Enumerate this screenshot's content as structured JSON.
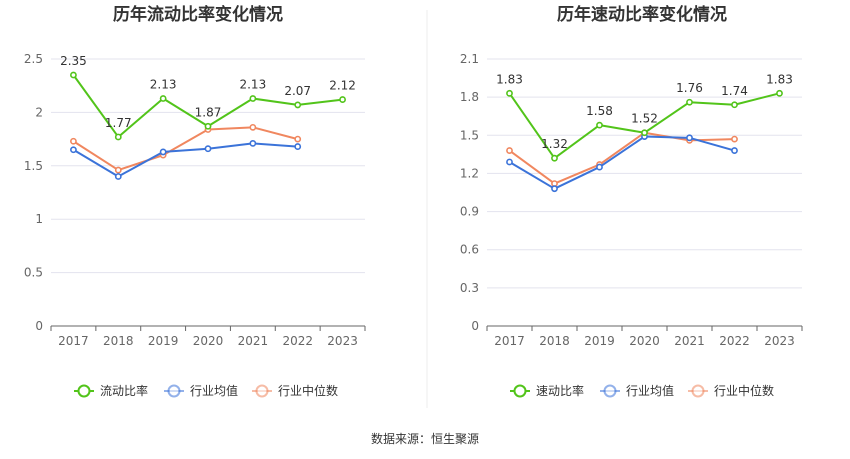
{
  "source": "数据来源：恒生聚源",
  "colors": {
    "primary": "#52c41a",
    "industry_avg": "#3b73d9",
    "industry_median": "#f0875f",
    "grid": "#e3e3ee",
    "axis": "#666666",
    "divider": "#eeeeee"
  },
  "chart_data": [
    {
      "type": "line",
      "title": "历年流动比率变化情况",
      "categories": [
        "2017",
        "2018",
        "2019",
        "2020",
        "2021",
        "2022",
        "2023"
      ],
      "ylim": [
        0,
        2.5
      ],
      "yticks": [
        0,
        0.5,
        1,
        1.5,
        2,
        2.5
      ],
      "ytick_labels": [
        "0",
        "0.5",
        "1",
        "1.5",
        "2",
        "2.5"
      ],
      "grid": true,
      "legend_position": "bottom",
      "labeled_series": 0,
      "series": [
        {
          "name": "流动比率",
          "color": "#52c41a",
          "values": [
            2.35,
            1.77,
            2.13,
            1.87,
            2.13,
            2.07,
            2.12
          ],
          "labels": [
            "2.35",
            "1.77",
            "2.13",
            "1.87",
            "2.13",
            "2.07",
            "2.12"
          ]
        },
        {
          "name": "行业均值",
          "color": "#3b73d9",
          "values": [
            1.65,
            1.4,
            1.63,
            1.66,
            1.71,
            1.68,
            null
          ]
        },
        {
          "name": "行业中位数",
          "color": "#f0875f",
          "values": [
            1.73,
            1.46,
            1.6,
            1.84,
            1.86,
            1.75,
            null
          ]
        }
      ]
    },
    {
      "type": "line",
      "title": "历年速动比率变化情况",
      "categories": [
        "2017",
        "2018",
        "2019",
        "2020",
        "2021",
        "2022",
        "2023"
      ],
      "ylim": [
        0,
        2.1
      ],
      "yticks": [
        0,
        0.3,
        0.6,
        0.9,
        1.2,
        1.5,
        1.8,
        2.1
      ],
      "ytick_labels": [
        "0",
        "0.3",
        "0.6",
        "0.9",
        "1.2",
        "1.5",
        "1.8",
        "2.1"
      ],
      "grid": true,
      "legend_position": "bottom",
      "labeled_series": 0,
      "series": [
        {
          "name": "速动比率",
          "color": "#52c41a",
          "values": [
            1.83,
            1.32,
            1.58,
            1.52,
            1.76,
            1.74,
            1.83
          ],
          "labels": [
            "1.83",
            "1.32",
            "1.58",
            "1.52",
            "1.76",
            "1.74",
            "1.83"
          ]
        },
        {
          "name": "行业均值",
          "color": "#3b73d9",
          "values": [
            1.29,
            1.08,
            1.25,
            1.49,
            1.48,
            1.38,
            null
          ]
        },
        {
          "name": "行业中位数",
          "color": "#f0875f",
          "values": [
            1.38,
            1.12,
            1.27,
            1.52,
            1.46,
            1.47,
            null
          ]
        }
      ]
    }
  ]
}
